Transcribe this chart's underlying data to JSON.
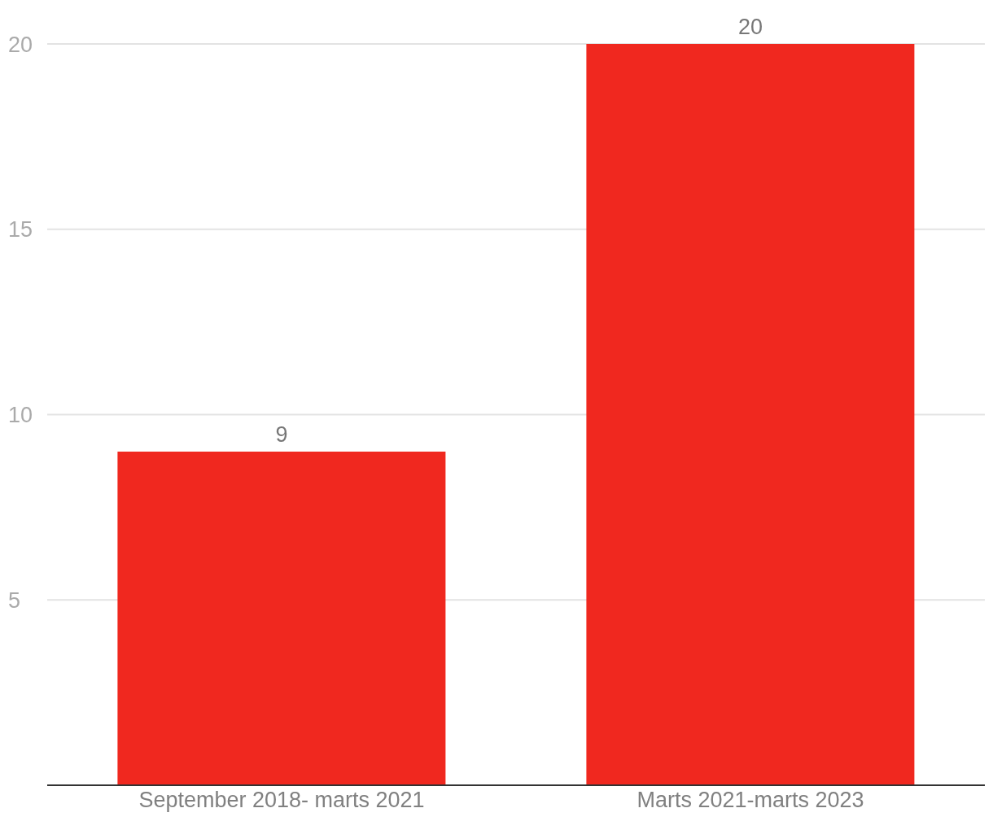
{
  "chart_data": {
    "type": "bar",
    "categories": [
      "September 2018- marts 2021",
      "Marts 2021-marts 2023"
    ],
    "values": [
      9,
      20
    ],
    "color": "#f0281f",
    "ylim": [
      0,
      20
    ],
    "yticks": [
      {
        "value": 0,
        "label": null
      },
      5,
      10,
      15,
      20
    ],
    "grid": "y",
    "data_labels": true
  }
}
